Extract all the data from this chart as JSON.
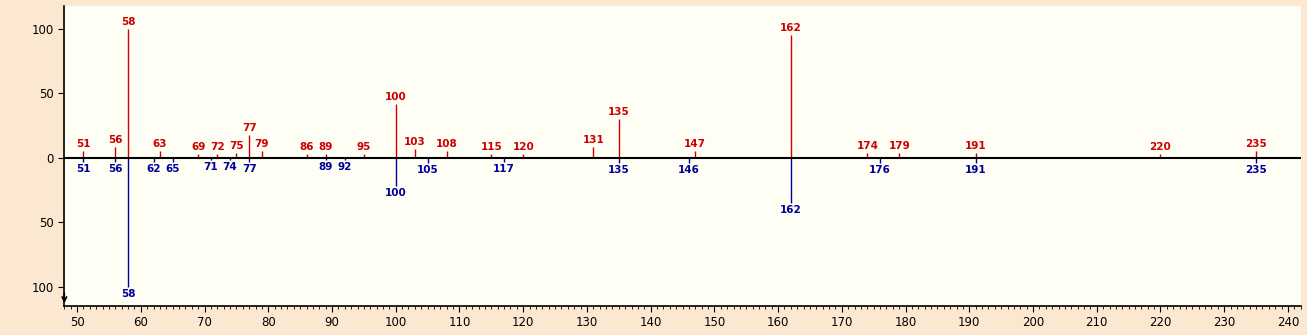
{
  "background_color": "#fce8d0",
  "plot_bg_color": "#fefef5",
  "xlim": [
    48,
    242
  ],
  "ylim": [
    -115,
    118
  ],
  "xticks": [
    50,
    60,
    70,
    80,
    90,
    100,
    110,
    120,
    130,
    140,
    150,
    160,
    170,
    180,
    190,
    200,
    210,
    220,
    230,
    240
  ],
  "yticks": [
    -100,
    -50,
    0,
    50,
    100
  ],
  "red_peaks": [
    {
      "mz": 51,
      "intensity": 5
    },
    {
      "mz": 56,
      "intensity": 8
    },
    {
      "mz": 58,
      "intensity": 100
    },
    {
      "mz": 63,
      "intensity": 5
    },
    {
      "mz": 69,
      "intensity": 3
    },
    {
      "mz": 72,
      "intensity": 3
    },
    {
      "mz": 75,
      "intensity": 4
    },
    {
      "mz": 77,
      "intensity": 18
    },
    {
      "mz": 79,
      "intensity": 5
    },
    {
      "mz": 86,
      "intensity": 3
    },
    {
      "mz": 89,
      "intensity": 3
    },
    {
      "mz": 95,
      "intensity": 3
    },
    {
      "mz": 100,
      "intensity": 42
    },
    {
      "mz": 103,
      "intensity": 7
    },
    {
      "mz": 108,
      "intensity": 5
    },
    {
      "mz": 115,
      "intensity": 3
    },
    {
      "mz": 120,
      "intensity": 3
    },
    {
      "mz": 131,
      "intensity": 8
    },
    {
      "mz": 135,
      "intensity": 30
    },
    {
      "mz": 147,
      "intensity": 5
    },
    {
      "mz": 162,
      "intensity": 95
    },
    {
      "mz": 174,
      "intensity": 4
    },
    {
      "mz": 179,
      "intensity": 4
    },
    {
      "mz": 191,
      "intensity": 4
    },
    {
      "mz": 220,
      "intensity": 3
    },
    {
      "mz": 235,
      "intensity": 5
    }
  ],
  "blue_peaks": [
    {
      "mz": 51,
      "intensity": -3
    },
    {
      "mz": 56,
      "intensity": -3
    },
    {
      "mz": 58,
      "intensity": -100
    },
    {
      "mz": 62,
      "intensity": -3
    },
    {
      "mz": 65,
      "intensity": -3
    },
    {
      "mz": 71,
      "intensity": -2
    },
    {
      "mz": 74,
      "intensity": -2
    },
    {
      "mz": 77,
      "intensity": -3
    },
    {
      "mz": 89,
      "intensity": -2
    },
    {
      "mz": 92,
      "intensity": -2
    },
    {
      "mz": 100,
      "intensity": -22
    },
    {
      "mz": 105,
      "intensity": -4
    },
    {
      "mz": 117,
      "intensity": -3
    },
    {
      "mz": 135,
      "intensity": -4
    },
    {
      "mz": 146,
      "intensity": -4
    },
    {
      "mz": 162,
      "intensity": -35
    },
    {
      "mz": 176,
      "intensity": -4
    },
    {
      "mz": 191,
      "intensity": -4
    },
    {
      "mz": 235,
      "intensity": -4
    }
  ],
  "red_color": "#cc0000",
  "blue_color": "#000099",
  "label_fontsize": 7.5,
  "tick_fontsize": 8.5
}
